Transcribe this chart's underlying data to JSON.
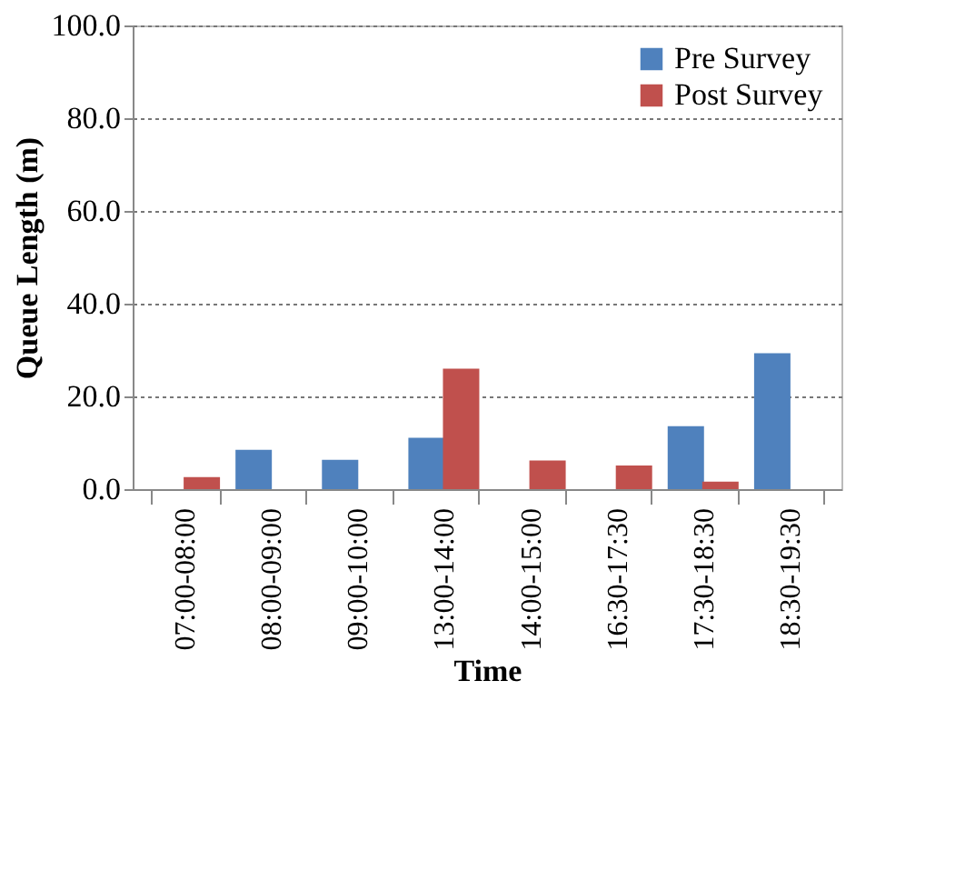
{
  "chart_data": {
    "type": "bar",
    "xlabel": "Time",
    "ylabel": "Queue Length (m)",
    "categories": [
      "07:00-08:00",
      "08:00-09:00",
      "09:00-10:00",
      "13:00-14:00",
      "14:00-15:00",
      "16:30-17:30",
      "17:30-18:30",
      "18:30-19:30"
    ],
    "series": [
      {
        "name": "Pre Survey",
        "color": "#4f81bd",
        "values": [
          null,
          8.5,
          6.3,
          11.1,
          null,
          null,
          13.6,
          29.3
        ]
      },
      {
        "name": "Post Survey",
        "color": "#c0504d",
        "values": [
          2.6,
          null,
          null,
          26.0,
          6.2,
          5.1,
          1.6,
          null
        ]
      }
    ],
    "ylim": [
      0,
      100
    ],
    "yticks": [
      {
        "value": 0,
        "label": "0.0"
      },
      {
        "value": 20,
        "label": "20.0"
      },
      {
        "value": 40,
        "label": "40.0"
      },
      {
        "value": 60,
        "label": "60.0"
      },
      {
        "value": 80,
        "label": "80.0"
      },
      {
        "value": 100,
        "label": "100.0"
      }
    ],
    "grid": "y",
    "legend": "top right"
  }
}
